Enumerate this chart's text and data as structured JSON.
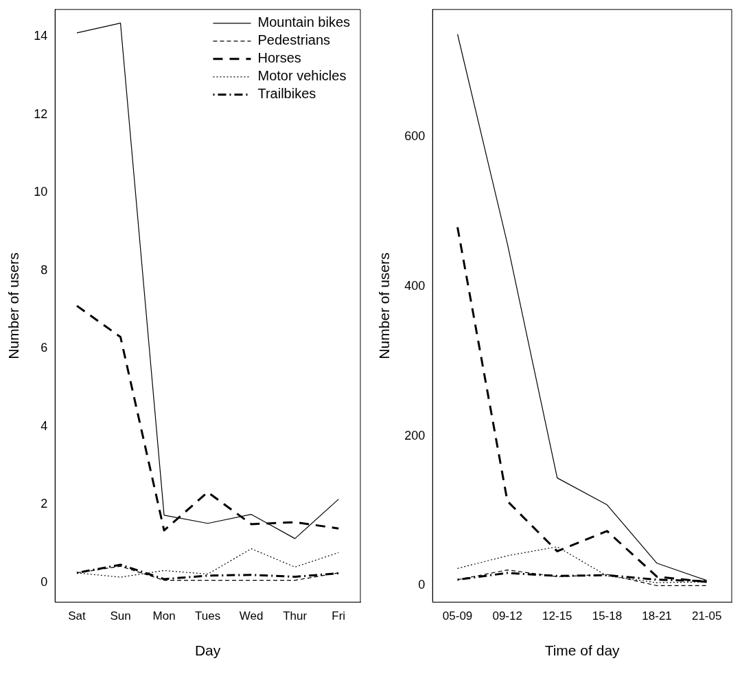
{
  "chart_data": [
    {
      "type": "line",
      "xlabel": "Day",
      "ylabel": "Number of users",
      "categories": [
        "Sat",
        "Sun",
        "Mon",
        "Tues",
        "Wed",
        "Thur",
        "Fri"
      ],
      "ylim": [
        -0.5,
        14.7
      ],
      "yticks": [
        0,
        2,
        4,
        6,
        8,
        10,
        12,
        14
      ],
      "grid": false,
      "legend": "top right",
      "marker": "none",
      "series": [
        {
          "name": "Mountain bikes",
          "color": "#000000",
          "line_style": "solid",
          "values": [
            14.1,
            14.35,
            1.73,
            1.52,
            1.75,
            1.13,
            2.14
          ]
        },
        {
          "name": "Pedestrians",
          "color": "#000000",
          "line_style": "dashed",
          "values": [
            0.25,
            0.42,
            0.06,
            0.06,
            0.06,
            0.06,
            0.25
          ]
        },
        {
          "name": "Horses",
          "color": "#000000",
          "line_style": "longdash",
          "values": [
            7.1,
            6.3,
            1.34,
            2.32,
            1.5,
            1.55,
            1.39
          ]
        },
        {
          "name": "Motor vehicles",
          "color": "#000000",
          "line_style": "dotted",
          "values": [
            0.25,
            0.14,
            0.31,
            0.22,
            0.87,
            0.4,
            0.77
          ]
        },
        {
          "name": "Trailbikes",
          "color": "#000000",
          "line_style": "dashdot",
          "values": [
            0.25,
            0.46,
            0.09,
            0.18,
            0.2,
            0.15,
            0.24
          ]
        }
      ]
    },
    {
      "type": "line",
      "xlabel": "Time of day",
      "ylabel": "Number of users",
      "categories": [
        "05-09",
        "09-12",
        "12-15",
        "15-18",
        "18-21",
        "21-05"
      ],
      "ylim": [
        -22,
        770
      ],
      "yticks": [
        0,
        200,
        400,
        600
      ],
      "grid": false,
      "legend": false,
      "marker": "none",
      "series": [
        {
          "color": "#000000",
          "line_style": "solid",
          "values": [
            737,
            457,
            144,
            108,
            30,
            7
          ]
        },
        {
          "color": "#000000",
          "line_style": "dashed",
          "values": [
            8,
            21,
            12,
            15,
            0,
            0
          ]
        },
        {
          "color": "#000000",
          "line_style": "longdash",
          "values": [
            479,
            113,
            46,
            73,
            12,
            5
          ]
        },
        {
          "color": "#000000",
          "line_style": "dotted",
          "values": [
            23,
            40,
            52,
            13,
            4,
            5
          ]
        },
        {
          "color": "#000000",
          "line_style": "dashdot",
          "values": [
            8,
            17,
            13,
            14,
            8,
            6
          ]
        }
      ]
    }
  ]
}
